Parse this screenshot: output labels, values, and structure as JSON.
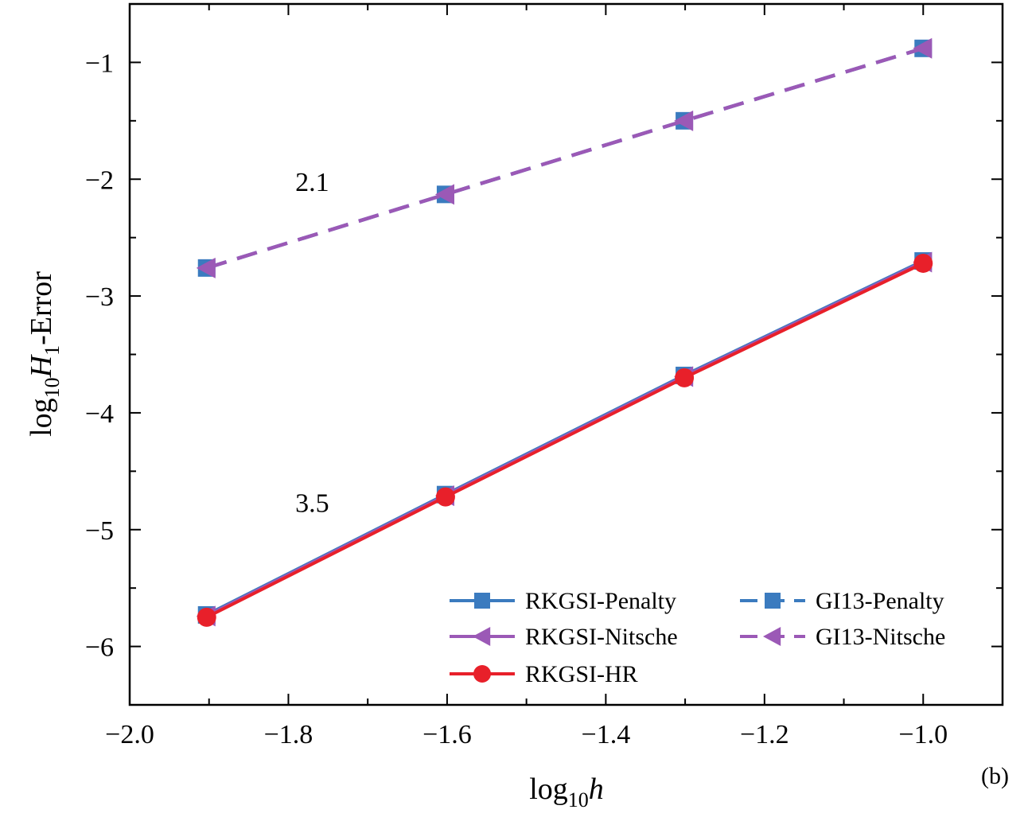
{
  "chart_data": {
    "type": "line",
    "panel_label": "(b)",
    "xlabel": {
      "prefix": "log",
      "sub": "10",
      "var": "h"
    },
    "ylabel": {
      "prefix": "log",
      "sub": "10",
      "var": "H",
      "var_sub": "1",
      "suffix": "-Error"
    },
    "xlim": [
      -2.0,
      -0.9
    ],
    "ylim": [
      -6.5,
      -0.5
    ],
    "x_ticks": [
      -2.0,
      -1.8,
      -1.6,
      -1.4,
      -1.2,
      -1.0
    ],
    "x_tick_labels": [
      "−2.0",
      "−1.8",
      "−1.6",
      "−1.4",
      "−1.2",
      "−1.0"
    ],
    "y_ticks": [
      -6,
      -5,
      -4,
      -3,
      -2,
      -1
    ],
    "y_tick_labels": [
      "−6",
      "−5",
      "−4",
      "−3",
      "−2",
      "−1"
    ],
    "grid": false,
    "legend_position": "bottom-right",
    "annotations": [
      {
        "text": "2.1",
        "x": -1.77,
        "y": -2.1
      },
      {
        "text": "3.5",
        "x": -1.77,
        "y": -4.85
      }
    ],
    "series": [
      {
        "name": "RKGSI-Penalty",
        "color": "#3b7bbf",
        "dash": "solid",
        "marker": "square",
        "x": [
          -1.903,
          -1.602,
          -1.301,
          -1.0
        ],
        "y": [
          -5.73,
          -4.7,
          -3.68,
          -2.7
        ]
      },
      {
        "name": "RKGSI-Nitsche",
        "color": "#9b59b6",
        "dash": "solid",
        "marker": "triangle-left",
        "x": [
          -1.903,
          -1.602,
          -1.301,
          -1.0
        ],
        "y": [
          -5.74,
          -4.71,
          -3.69,
          -2.71
        ]
      },
      {
        "name": "RKGSI-HR",
        "color": "#e8202a",
        "dash": "solid",
        "marker": "circle",
        "x": [
          -1.903,
          -1.602,
          -1.301,
          -1.0
        ],
        "y": [
          -5.75,
          -4.72,
          -3.7,
          -2.72
        ]
      },
      {
        "name": "GI13-Penalty",
        "color": "#3b7bbf",
        "dash": "dashed",
        "marker": "square",
        "x": [
          -1.903,
          -1.602,
          -1.301,
          -1.0
        ],
        "y": [
          -2.76,
          -2.13,
          -1.5,
          -0.88
        ]
      },
      {
        "name": "GI13-Nitsche",
        "color": "#9b59b6",
        "dash": "dashed",
        "marker": "triangle-left",
        "x": [
          -1.903,
          -1.602,
          -1.301,
          -1.0
        ],
        "y": [
          -2.76,
          -2.13,
          -1.5,
          -0.88
        ]
      }
    ]
  }
}
